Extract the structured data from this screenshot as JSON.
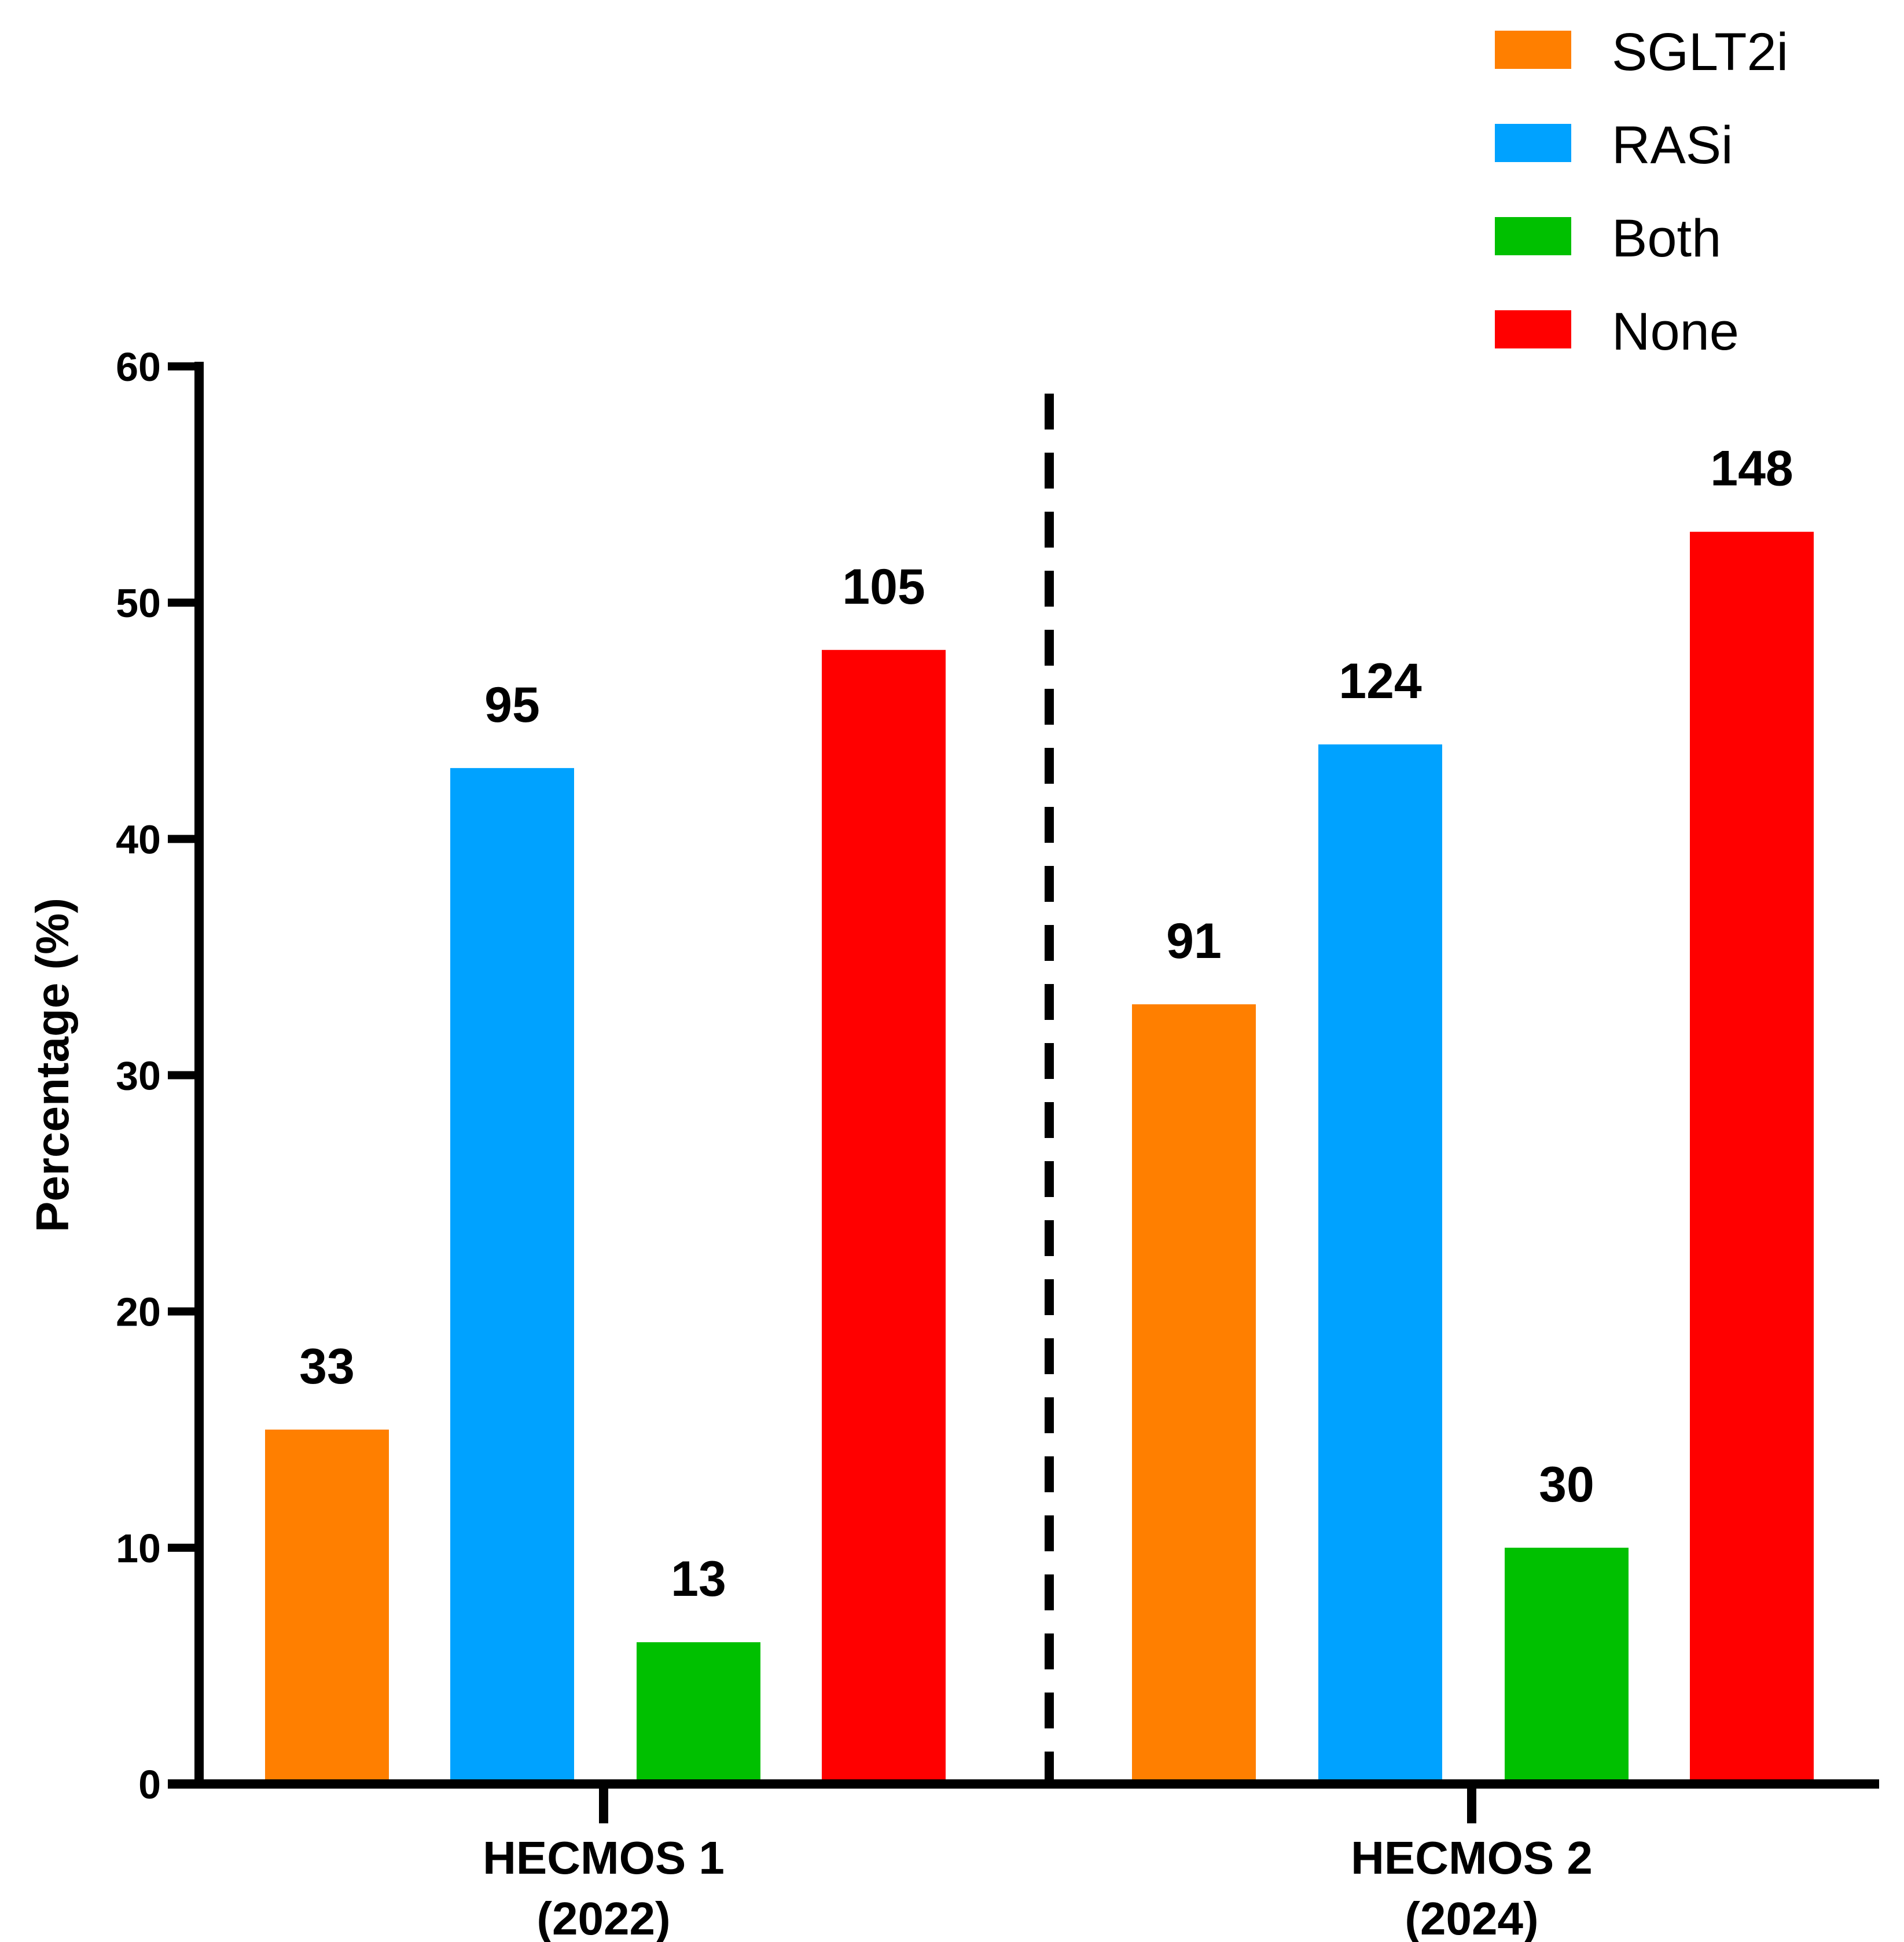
{
  "chart_data": {
    "type": "bar",
    "title": "",
    "xlabel": "",
    "ylabel": "Percentage (%)",
    "ylim": [
      0,
      60
    ],
    "yticks": [
      "0",
      "10",
      "20",
      "30",
      "40",
      "50",
      "60"
    ],
    "grid": false,
    "legend_position": "top-right",
    "categories": [
      {
        "line1": "HECMOS 1",
        "line2": "(2022)"
      },
      {
        "line1": "HECMOS 2",
        "line2": "(2024)"
      }
    ],
    "series": [
      {
        "name": "SGLT2i",
        "color": "#FF7F00",
        "values": [
          15,
          33
        ],
        "labels": [
          "33",
          "91"
        ]
      },
      {
        "name": "RASi",
        "color": "#00A2FF",
        "values": [
          43,
          44
        ],
        "labels": [
          "95",
          "124"
        ]
      },
      {
        "name": "Both",
        "color": "#00C000",
        "values": [
          6,
          10
        ],
        "labels": [
          "13",
          "30"
        ]
      },
      {
        "name": "None",
        "color": "#FF0000",
        "values": [
          48,
          53
        ],
        "labels": [
          "105",
          "148"
        ]
      }
    ],
    "separator": "dashed vertical line between groups"
  }
}
